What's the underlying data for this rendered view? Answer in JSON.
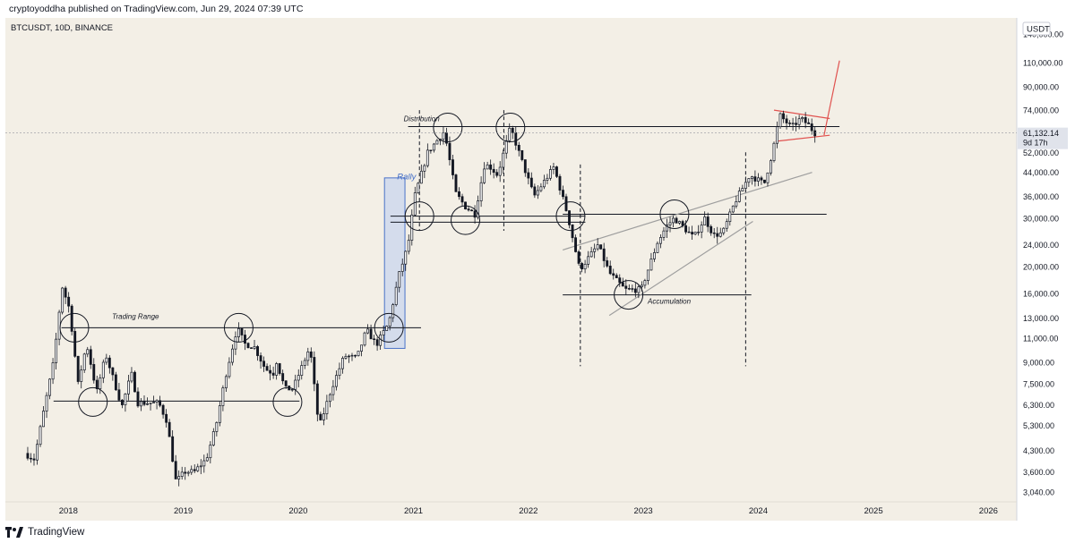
{
  "header": {
    "publisher_line": "cryptoyoddha published on TradingView.com, Jun 29, 2024 07:39 UTC"
  },
  "footer": {
    "brand": "TradingView"
  },
  "colors": {
    "background": "#f3efe6",
    "candle": "#131722",
    "line": "#131722",
    "rally_box_fill": "#c9d6ee",
    "rally_box_stroke": "#4a72c8",
    "rally_text": "#3f6bc6",
    "trend_grey": "#9e9e9e",
    "pennant": "#e0524f",
    "price_tag": "#e0e3eb"
  },
  "chart_data": {
    "type": "candlestick",
    "symbol_label": "BTCUSDT, 10D, BINANCE",
    "currency_label": "USDT",
    "y_scale": "log",
    "ylim": [
      2800,
      160000
    ],
    "xlim": [
      "2017-06-15",
      "2026-04-01"
    ],
    "x_ticks": [
      "2018",
      "2019",
      "2020",
      "2021",
      "2022",
      "2023",
      "2024",
      "2025",
      "2026"
    ],
    "y_ticks": [
      3040,
      3600,
      4300,
      5300,
      6300,
      7500,
      9000,
      11000,
      13000,
      16000,
      20000,
      24000,
      30000,
      36000,
      44000,
      52000,
      61132.14,
      74000,
      90000,
      110000,
      140000
    ],
    "y_tick_labels": [
      "3,040.00",
      "3,600.00",
      "4,300.00",
      "5,300.00",
      "6,300.00",
      "7,500.00",
      "9,000.00",
      "11,000.00",
      "13,000.00",
      "16,000.00",
      "20,000.00",
      "24,000.00",
      "30,000.00",
      "36,000.00",
      "44,000.00",
      "52,000.00",
      "61,132.14",
      "74,000.00",
      "90,000.00",
      "110,000.00",
      "140,000.00"
    ],
    "last_price": {
      "value": 61132.14,
      "label": "61,132.14",
      "countdown": "9d 17h"
    },
    "close_path": [
      [
        "2017-08-20",
        4200
      ],
      [
        "2017-09-20",
        4000
      ],
      [
        "2017-10-20",
        6000
      ],
      [
        "2017-11-20",
        9000
      ],
      [
        "2017-12-17",
        17000
      ],
      [
        "2018-01-10",
        14000
      ],
      [
        "2018-02-06",
        7500
      ],
      [
        "2018-03-05",
        10500
      ],
      [
        "2018-04-06",
        7000
      ],
      [
        "2018-05-05",
        9600
      ],
      [
        "2018-06-25",
        6200
      ],
      [
        "2018-07-25",
        8200
      ],
      [
        "2018-08-15",
        6400
      ],
      [
        "2018-10-20",
        6400
      ],
      [
        "2018-11-15",
        5500
      ],
      [
        "2018-12-14",
        3300
      ],
      [
        "2019-01-10",
        3600
      ],
      [
        "2019-02-10",
        3600
      ],
      [
        "2019-03-20",
        4000
      ],
      [
        "2019-04-20",
        5300
      ],
      [
        "2019-05-20",
        8000
      ],
      [
        "2019-06-26",
        12000
      ],
      [
        "2019-07-20",
        10500
      ],
      [
        "2019-08-20",
        10200
      ],
      [
        "2019-09-24",
        8500
      ],
      [
        "2019-10-20",
        8200
      ],
      [
        "2019-10-26",
        9300
      ],
      [
        "2019-11-25",
        7200
      ],
      [
        "2019-12-20",
        7200
      ],
      [
        "2020-02-12",
        10200
      ],
      [
        "2020-03-12",
        5200
      ],
      [
        "2020-04-20",
        7200
      ],
      [
        "2020-06-01",
        9500
      ],
      [
        "2020-07-10",
        9300
      ],
      [
        "2020-08-10",
        11800
      ],
      [
        "2020-09-10",
        10400
      ],
      [
        "2020-10-20",
        12500
      ],
      [
        "2020-11-20",
        18500
      ],
      [
        "2020-12-20",
        24000
      ],
      [
        "2021-01-10",
        36000
      ],
      [
        "2021-02-20",
        52000
      ],
      [
        "2021-04-14",
        62000
      ],
      [
        "2021-05-20",
        37000
      ],
      [
        "2021-06-20",
        33000
      ],
      [
        "2021-07-20",
        31000
      ],
      [
        "2021-08-20",
        47000
      ],
      [
        "2021-09-07",
        46000
      ],
      [
        "2021-09-30",
        43000
      ],
      [
        "2021-11-10",
        64000
      ],
      [
        "2021-12-20",
        47000
      ],
      [
        "2022-01-24",
        36000
      ],
      [
        "2022-03-28",
        46000
      ],
      [
        "2022-05-10",
        31000
      ],
      [
        "2022-06-18",
        19500
      ],
      [
        "2022-08-15",
        24000
      ],
      [
        "2022-09-20",
        19000
      ],
      [
        "2022-11-09",
        16500
      ],
      [
        "2022-12-30",
        16500
      ],
      [
        "2023-02-20",
        24500
      ],
      [
        "2023-03-20",
        28000
      ],
      [
        "2023-04-14",
        30000
      ],
      [
        "2023-06-15",
        25500
      ],
      [
        "2023-07-20",
        30000
      ],
      [
        "2023-08-17",
        26000
      ],
      [
        "2023-09-15",
        26500
      ],
      [
        "2023-10-25",
        34500
      ],
      [
        "2023-12-10",
        43000
      ],
      [
        "2024-01-25",
        40000
      ],
      [
        "2024-02-20",
        52000
      ],
      [
        "2024-03-14",
        71000
      ],
      [
        "2024-04-20",
        64000
      ],
      [
        "2024-05-20",
        69000
      ],
      [
        "2024-06-20",
        64500
      ],
      [
        "2024-06-29",
        61132
      ]
    ],
    "annotations": {
      "labels": [
        {
          "text": "Trading Range",
          "x": "2018-05-20",
          "y": 12900
        },
        {
          "text": "Distribution",
          "x": "2020-12-01",
          "y": 67500
        },
        {
          "text": "Rally",
          "x": "2020-11-10",
          "y": 41500
        },
        {
          "text": "Accumulation",
          "x": "2023-01-15",
          "y": 14700
        }
      ],
      "horizontal_lines": [
        {
          "name": "trading-range-top",
          "x1": "2017-12-10",
          "x2": "2021-01-25",
          "y": 12000
        },
        {
          "name": "trading-range-bottom",
          "x1": "2017-11-15",
          "x2": "2020-01-05",
          "y": 6500
        },
        {
          "name": "distribution-top",
          "x1": "2020-12-15",
          "x2": "2024-09-15",
          "y": 64500
        },
        {
          "name": "distribution-mid-upper",
          "x1": "2020-10-20",
          "x2": "2022-07-01",
          "y": 30500
        },
        {
          "name": "distribution-mid-lower",
          "x1": "2020-10-20",
          "x2": "2022-07-01",
          "y": 29000
        },
        {
          "name": "mid-resistance",
          "x1": "2022-04-20",
          "x2": "2024-08-05",
          "y": 31000
        },
        {
          "name": "accumulation-bottom",
          "x1": "2022-04-20",
          "x2": "2023-12-10",
          "y": 15800
        }
      ],
      "vertical_dashed": [
        {
          "x": "2021-01-20",
          "y1": 27000,
          "y2": 74000
        },
        {
          "x": "2021-10-15",
          "y1": 27000,
          "y2": 74000
        },
        {
          "x": "2022-06-15",
          "y1": 8700,
          "y2": 47000
        },
        {
          "x": "2023-11-22",
          "y1": 8700,
          "y2": 52000
        }
      ],
      "circles": [
        {
          "x": "2018-01-20",
          "y": 12000
        },
        {
          "x": "2018-03-20",
          "y": 6450
        },
        {
          "x": "2019-06-26",
          "y": 12000
        },
        {
          "x": "2019-11-28",
          "y": 6450
        },
        {
          "x": "2020-10-15",
          "y": 12000
        },
        {
          "x": "2021-01-20",
          "y": 30500
        },
        {
          "x": "2021-04-20",
          "y": 64000
        },
        {
          "x": "2021-06-15",
          "y": 29500
        },
        {
          "x": "2021-11-05",
          "y": 64000
        },
        {
          "x": "2022-05-15",
          "y": 30500
        },
        {
          "x": "2022-11-15",
          "y": 15800
        },
        {
          "x": "2023-04-10",
          "y": 31000
        }
      ],
      "rally_box": {
        "x1": "2020-10-01",
        "x2": "2020-12-05",
        "y1": 10100,
        "y2": 42000
      },
      "grey_trendlines": [
        {
          "x1": "2022-04-20",
          "y1": 23000,
          "x2": "2024-06-20",
          "y2": 44000
        },
        {
          "x1": "2022-09-15",
          "y1": 13300,
          "x2": "2023-12-15",
          "y2": 29200
        }
      ],
      "pennant": {
        "upper": {
          "x1": "2024-02-20",
          "y1": 74000,
          "x2": "2024-08-15",
          "y2": 69000
        },
        "lower": {
          "x1": "2024-02-25",
          "y1": 57000,
          "x2": "2024-08-15",
          "y2": 60000
        },
        "projection": {
          "x1": "2024-07-28",
          "y1": 60000,
          "x2": "2024-09-15",
          "y2": 112000
        }
      }
    }
  }
}
